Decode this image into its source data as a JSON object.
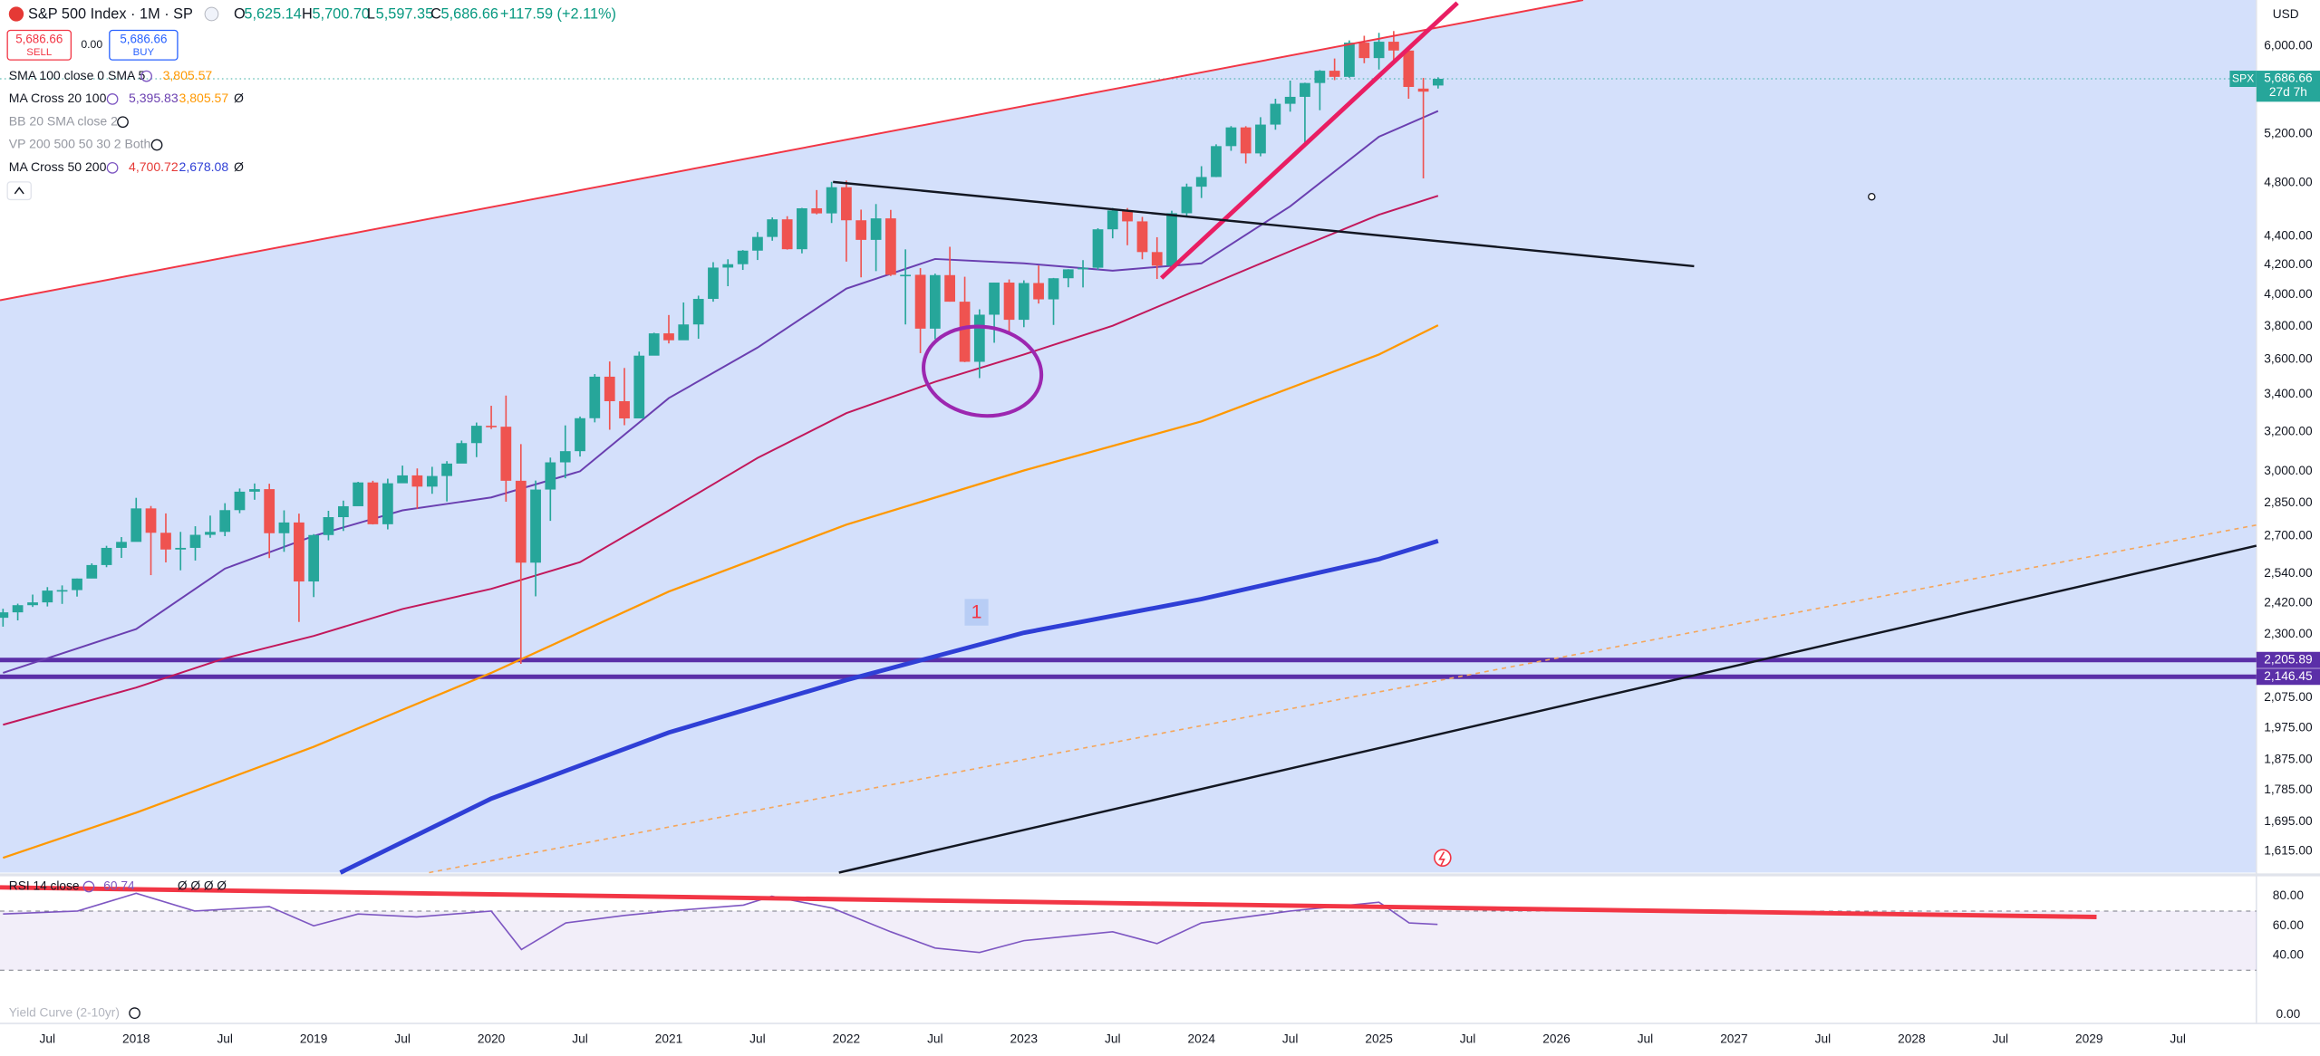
{
  "header": {
    "symbol": "S&P 500 Index · 1M · SP",
    "ohlc": [
      {
        "key": "O",
        "value": "5,625.14"
      },
      {
        "key": "H",
        "value": "5,700.70"
      },
      {
        "key": "L",
        "value": "5,597.35"
      },
      {
        "key": "C",
        "value": "5,686.66"
      }
    ],
    "change": "+117.59 (+2.11%)",
    "sell": {
      "price": "5,686.66",
      "label": "SELL"
    },
    "spread": "0.00",
    "buy": {
      "price": "5,686.66",
      "label": "BUY"
    },
    "indicators": [
      {
        "label": "SMA 100 close 0 SMA 5",
        "values": [
          "3,805.57"
        ]
      },
      {
        "label": "MA Cross 20 100",
        "values": [
          "5,395.83",
          "3,805.57",
          "Ø"
        ]
      },
      {
        "label": "BB 20 SMA close 2"
      },
      {
        "label": "VP 200 500 50 30 2 Both"
      },
      {
        "label": "MA Cross 50 200",
        "values": [
          "4,700.72",
          "2,678.08",
          "Ø"
        ]
      }
    ],
    "currency": "USD",
    "annotation": "1",
    "footer_indicator": "Yield Curve (2-10yr)"
  },
  "chart_data": [
    {
      "type": "candlestick",
      "log_scale": true,
      "up_color": "#26a69a",
      "down_color": "#ef5350",
      "xlim": [
        2017.233,
        2029.942
      ],
      "xticks": [
        {
          "value": 2017.5,
          "label": "Jul"
        },
        2018,
        {
          "value": 2018.5,
          "label": "Jul"
        },
        2019,
        {
          "value": 2019.5,
          "label": "Jul"
        },
        2020,
        {
          "value": 2020.5,
          "label": "Jul"
        },
        2021,
        {
          "value": 2021.5,
          "label": "Jul"
        },
        2022,
        {
          "value": 2022.5,
          "label": "Jul"
        },
        2023,
        {
          "value": 2023.5,
          "label": "Jul"
        },
        2024,
        {
          "value": 2024.5,
          "label": "Jul"
        },
        2025,
        {
          "value": 2025.5,
          "label": "Jul"
        },
        2026,
        {
          "value": 2026.5,
          "label": "Jul"
        },
        2027,
        {
          "value": 2027.5,
          "label": "Jul"
        },
        2028,
        {
          "value": 2028.5,
          "label": "Jul"
        },
        2029,
        {
          "value": 2029.5,
          "label": "Jul"
        }
      ],
      "ylim": [
        1560,
        6466
      ],
      "yticks": [
        {
          "value": 6000,
          "label": "6,000.00"
        },
        {
          "value": 5200,
          "label": "5,200.00"
        },
        {
          "value": 4800,
          "label": "4,800.00"
        },
        {
          "value": 4400,
          "label": "4,400.00"
        },
        {
          "value": 4200,
          "label": "4,200.00"
        },
        {
          "value": 4000,
          "label": "4,000.00"
        },
        {
          "value": 3800,
          "label": "3,800.00"
        },
        {
          "value": 3600,
          "label": "3,600.00"
        },
        {
          "value": 3400,
          "label": "3,400.00"
        },
        {
          "value": 3200,
          "label": "3,200.00"
        },
        {
          "value": 3000,
          "label": "3,000.00"
        },
        {
          "value": 2850,
          "label": "2,850.00"
        },
        {
          "value": 2700,
          "label": "2,700.00"
        },
        {
          "value": 2540,
          "label": "2,540.00"
        },
        {
          "value": 2420,
          "label": "2,420.00"
        },
        {
          "value": 2300,
          "label": "2,300.00"
        },
        {
          "value": 2075,
          "label": "2,075.00"
        },
        {
          "value": 1975,
          "label": "1,975.00"
        },
        {
          "value": 1875,
          "label": "1,875.00"
        },
        {
          "value": 1785,
          "label": "1,785.00"
        },
        {
          "value": 1695,
          "label": "1,695.00"
        },
        {
          "value": 1615,
          "label": "1,615.00"
        }
      ],
      "x": [
        2017.25,
        2017.333,
        2017.417,
        2017.5,
        2017.583,
        2017.667,
        2017.75,
        2017.833,
        2017.917,
        2018.0,
        2018.083,
        2018.167,
        2018.25,
        2018.333,
        2018.417,
        2018.5,
        2018.583,
        2018.667,
        2018.75,
        2018.833,
        2018.917,
        2019.0,
        2019.083,
        2019.167,
        2019.25,
        2019.333,
        2019.417,
        2019.5,
        2019.583,
        2019.667,
        2019.75,
        2019.833,
        2019.917,
        2020.0,
        2020.083,
        2020.167,
        2020.25,
        2020.333,
        2020.417,
        2020.5,
        2020.583,
        2020.667,
        2020.75,
        2020.833,
        2020.917,
        2021.0,
        2021.083,
        2021.167,
        2021.25,
        2021.333,
        2021.417,
        2021.5,
        2021.583,
        2021.667,
        2021.75,
        2021.833,
        2021.917,
        2022.0,
        2022.083,
        2022.167,
        2022.25,
        2022.333,
        2022.417,
        2022.5,
        2022.583,
        2022.667,
        2022.75,
        2022.833,
        2022.917,
        2023.0,
        2023.083,
        2023.167,
        2023.25,
        2023.333,
        2023.417,
        2023.5,
        2023.583,
        2023.667,
        2023.75,
        2023.833,
        2023.917,
        2024.0,
        2024.083,
        2024.167,
        2024.25,
        2024.333,
        2024.417,
        2024.5,
        2024.583,
        2024.667,
        2024.75,
        2024.833,
        2024.917,
        2025.0,
        2025.083,
        2025.167,
        2025.25,
        2025.333
      ],
      "open": [
        2363,
        2384,
        2412,
        2423,
        2470,
        2472,
        2519,
        2575,
        2648,
        2674,
        2824,
        2714,
        2641,
        2648,
        2705,
        2718,
        2816,
        2902,
        2914,
        2712,
        2760,
        2507,
        2704,
        2784,
        2834,
        2946,
        2752,
        2942,
        2980,
        2926,
        2977,
        3038,
        3141,
        3231,
        3226,
        2954,
        2585,
        2912,
        3044,
        3100,
        3271,
        3500,
        3363,
        3270,
        3622,
        3756,
        3714,
        3811,
        3973,
        4181,
        4204,
        4298,
        4395,
        4523,
        4308,
        4605,
        4567,
        4766,
        4516,
        4374,
        4530,
        4132,
        4132,
        3785,
        4130,
        3955,
        3586,
        3872,
        4080,
        3840,
        4077,
        3970,
        4109,
        4169,
        4180,
        4450,
        4589,
        4508,
        4288,
        4194,
        4568,
        4770,
        4846,
        5096,
        5254,
        5036,
        5278,
        5460,
        5522,
        5648,
        5762,
        5705,
        6032,
        5882,
        6041,
        5955,
        5597,
        5625.14
      ],
      "high": [
        2398,
        2418,
        2454,
        2484,
        2491,
        2519,
        2582,
        2657,
        2695,
        2873,
        2835,
        2801,
        2718,
        2743,
        2791,
        2848,
        2917,
        2941,
        2940,
        2815,
        2800,
        2708,
        2813,
        2860,
        2949,
        2954,
        2964,
        3028,
        3014,
        3022,
        3050,
        3154,
        3248,
        3338,
        3394,
        3136,
        2955,
        3068,
        3233,
        3280,
        3515,
        3588,
        3550,
        3646,
        3760,
        3870,
        3950,
        3994,
        4218,
        4238,
        4302,
        4430,
        4537,
        4546,
        4608,
        4744,
        4808,
        4818,
        4595,
        4637,
        4593,
        4307,
        4177,
        4140,
        4325,
        4119,
        3906,
        4080,
        4101,
        4095,
        4195,
        4111,
        4170,
        4232,
        4458,
        4608,
        4607,
        4541,
        4393,
        4587,
        4794,
        4932,
        5111,
        5265,
        5264,
        5342,
        5505,
        5670,
        5651,
        5768,
        5878,
        6054,
        6100,
        6129,
        6147,
        5987,
        5695,
        5700.7
      ],
      "low": [
        2329,
        2353,
        2405,
        2407,
        2417,
        2446,
        2520,
        2566,
        2605,
        2682,
        2533,
        2586,
        2553,
        2594,
        2692,
        2699,
        2802,
        2864,
        2604,
        2631,
        2347,
        2444,
        2681,
        2722,
        2848,
        2751,
        2729,
        2952,
        2822,
        2892,
        2856,
        3050,
        3070,
        3214,
        2855,
        2192,
        2447,
        2767,
        2966,
        3073,
        3249,
        3210,
        3234,
        3280,
        3634,
        3695,
        3725,
        3723,
        3955,
        4056,
        4165,
        4233,
        4368,
        4305,
        4279,
        4560,
        4496,
        4222,
        4115,
        4157,
        4124,
        3811,
        3637,
        3721,
        3955,
        3584,
        3492,
        3699,
        3764,
        3794,
        3943,
        3808,
        4049,
        4048,
        4166,
        4385,
        4336,
        4238,
        4104,
        4167,
        4546,
        4683,
        4845,
        5057,
        4954,
        5012,
        5234,
        5390,
        5120,
        5403,
        5675,
        5696,
        5833,
        5774,
        5837,
        5505,
        4835,
        5597.35
      ],
      "close": [
        2384,
        2412,
        2423,
        2470,
        2472,
        2519,
        2575,
        2648,
        2674,
        2824,
        2714,
        2641,
        2648,
        2705,
        2718,
        2816,
        2902,
        2914,
        2712,
        2760,
        2507,
        2704,
        2784,
        2834,
        2946,
        2752,
        2942,
        2980,
        2926,
        2977,
        3038,
        3141,
        3231,
        3226,
        2954,
        2585,
        2912,
        3044,
        3100,
        3271,
        3500,
        3363,
        3270,
        3622,
        3756,
        3714,
        3811,
        3973,
        4181,
        4204,
        4298,
        4395,
        4523,
        4308,
        4605,
        4567,
        4766,
        4516,
        4374,
        4530,
        4132,
        4132,
        3785,
        4130,
        3955,
        3586,
        3872,
        4080,
        3840,
        4077,
        3970,
        4109,
        4169,
        4180,
        4450,
        4589,
        4508,
        4288,
        4194,
        4568,
        4770,
        4846,
        5096,
        5254,
        5036,
        5278,
        5460,
        5522,
        5648,
        5762,
        5705,
        6032,
        5882,
        6041,
        5955,
        5612,
        5569,
        5686.66
      ],
      "overlays": [
        {
          "color": "#6a3fb0",
          "width": 1.2,
          "x": [
            2017.25,
            2018.0,
            2018.5,
            2019.0,
            2019.5,
            2020.0,
            2020.5,
            2021.0,
            2021.5,
            2022.0,
            2022.5,
            2023.0,
            2023.5,
            2024.0,
            2024.5,
            2025.0,
            2025.333
          ],
          "values": [
            2160,
            2320,
            2560,
            2700,
            2815,
            2875,
            3000,
            3380,
            3670,
            4040,
            4240,
            4210,
            4160,
            4210,
            4620,
            5175,
            5396
          ]
        },
        {
          "color": "#c2185b",
          "width": 1.2,
          "x": [
            2017.25,
            2018.0,
            2018.5,
            2019.0,
            2019.5,
            2020.0,
            2020.5,
            2021.0,
            2021.5,
            2022.0,
            2022.5,
            2023.0,
            2023.5,
            2024.0,
            2024.5,
            2025.0,
            2025.333
          ],
          "values": [
            1985,
            2109,
            2212,
            2294,
            2397,
            2477,
            2587,
            2814,
            3066,
            3298,
            3471,
            3629,
            3803,
            4042,
            4294,
            4557,
            4700
          ]
        },
        {
          "color": "#ff9800",
          "width": 1.4,
          "x": [
            2017.25,
            2018.0,
            2019.0,
            2020.0,
            2021.0,
            2022.0,
            2023.0,
            2024.0,
            2025.0,
            2025.333
          ],
          "values": [
            1598,
            1720,
            1915,
            2160,
            2466,
            2750,
            3004,
            3254,
            3629,
            3806
          ]
        },
        {
          "color": "#2f3fd6",
          "width": 3,
          "x": [
            2019.15,
            2020.0,
            2021.0,
            2022.0,
            2023.0,
            2024.0,
            2025.0,
            2025.333
          ],
          "values": [
            1560,
            1760,
            1960,
            2135,
            2306,
            2436,
            2600,
            2678
          ]
        }
      ],
      "levels": [
        {
          "value": 2205.89,
          "label": "2,205.89",
          "color": "#5b2fa8"
        },
        {
          "value": 2146.45,
          "label": "2,146.45",
          "color": "#5b2fa8"
        }
      ],
      "last_price": {
        "value": 5686.66,
        "label": "5,686.66",
        "symbol": "SPX",
        "countdown": "27d 7h",
        "color": "#26a69a"
      }
    },
    {
      "type": "line",
      "title": "RSI 14 close",
      "value_label": "60.74",
      "extra": "Ø Ø Ø Ø",
      "color": "#7e57c2",
      "band": [
        30,
        70
      ],
      "ylim": [
        -4,
        93
      ],
      "yticks": [
        {
          "value": 80,
          "label": "80.00"
        },
        {
          "value": 60,
          "label": "60.00"
        },
        {
          "value": 40,
          "label": "40.00"
        },
        {
          "value": 0,
          "label": "0.00"
        }
      ],
      "x": [
        2017.25,
        2017.67,
        2018.0,
        2018.33,
        2018.75,
        2019.0,
        2019.25,
        2019.58,
        2020.0,
        2020.17,
        2020.42,
        2020.75,
        2021.0,
        2021.42,
        2021.58,
        2021.92,
        2022.25,
        2022.5,
        2022.75,
        2023.0,
        2023.25,
        2023.5,
        2023.75,
        2024.0,
        2024.5,
        2025.0,
        2025.17,
        2025.33
      ],
      "values": [
        68,
        70,
        82,
        70,
        73,
        60,
        68,
        66,
        70,
        44,
        62,
        67,
        70,
        74,
        80,
        72,
        56,
        45,
        42,
        50,
        53,
        56,
        48,
        62,
        70,
        76,
        62,
        61
      ]
    }
  ]
}
